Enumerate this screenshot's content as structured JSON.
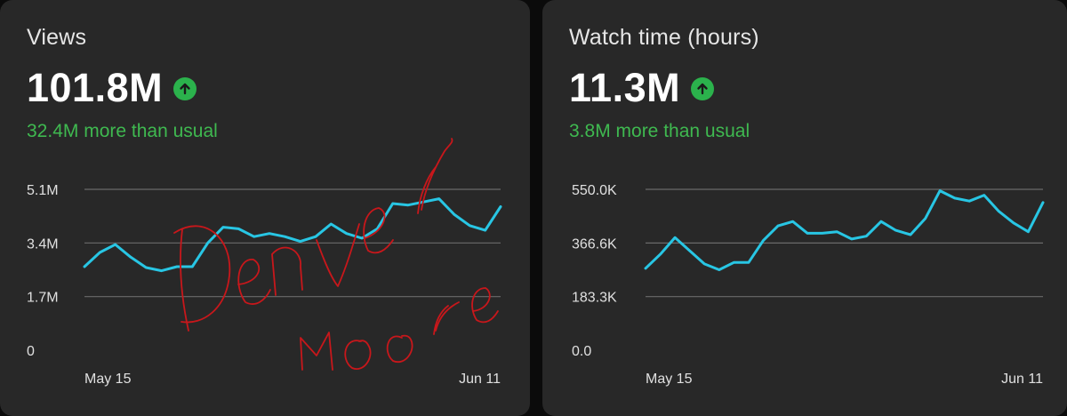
{
  "cards": [
    {
      "title": "Views",
      "value": "101.8M",
      "delta": "32.4M more than usual"
    },
    {
      "title": "Watch time (hours)",
      "value": "11.3M",
      "delta": "3.8M more than usual"
    }
  ],
  "signature": "Denver Moore",
  "colors": {
    "line": "#28c6e4",
    "positive": "#3fb950",
    "card": "#282828",
    "signature": "#c8171b"
  },
  "icons": {
    "trend": "arrow-up-circle-icon"
  },
  "chart_data": [
    {
      "type": "line",
      "title": "Views",
      "ylim": [
        0,
        5.1
      ],
      "yticks": [
        0,
        1.7,
        3.4,
        5.1
      ],
      "ytick_labels": [
        "0",
        "1.7M",
        "3.4M",
        "5.1M"
      ],
      "xtick_labels": [
        "May 15",
        "Jun 11"
      ],
      "grid": true,
      "series": [
        {
          "values": [
            2.65,
            3.1,
            3.35,
            2.95,
            2.62,
            2.52,
            2.65,
            2.65,
            3.4,
            3.9,
            3.85,
            3.6,
            3.7,
            3.6,
            3.45,
            3.6,
            4.0,
            3.7,
            3.55,
            3.85,
            4.65,
            4.6,
            4.7,
            4.8,
            4.3,
            3.95,
            3.8,
            4.55
          ]
        }
      ]
    },
    {
      "type": "line",
      "title": "Watch time (hours)",
      "ylim": [
        0,
        550.0
      ],
      "yticks": [
        0,
        183.3,
        366.6,
        550.0
      ],
      "ytick_labels": [
        "0.0",
        "183.3K",
        "366.6K",
        "550.0K"
      ],
      "xtick_labels": [
        "May 15",
        "Jun 11"
      ],
      "grid": true,
      "series": [
        {
          "values": [
            280,
            328,
            385,
            340,
            295,
            275,
            300,
            300,
            375,
            425,
            440,
            400,
            400,
            405,
            380,
            390,
            440,
            410,
            395,
            450,
            545,
            520,
            510,
            530,
            475,
            435,
            405,
            505
          ]
        }
      ]
    }
  ]
}
